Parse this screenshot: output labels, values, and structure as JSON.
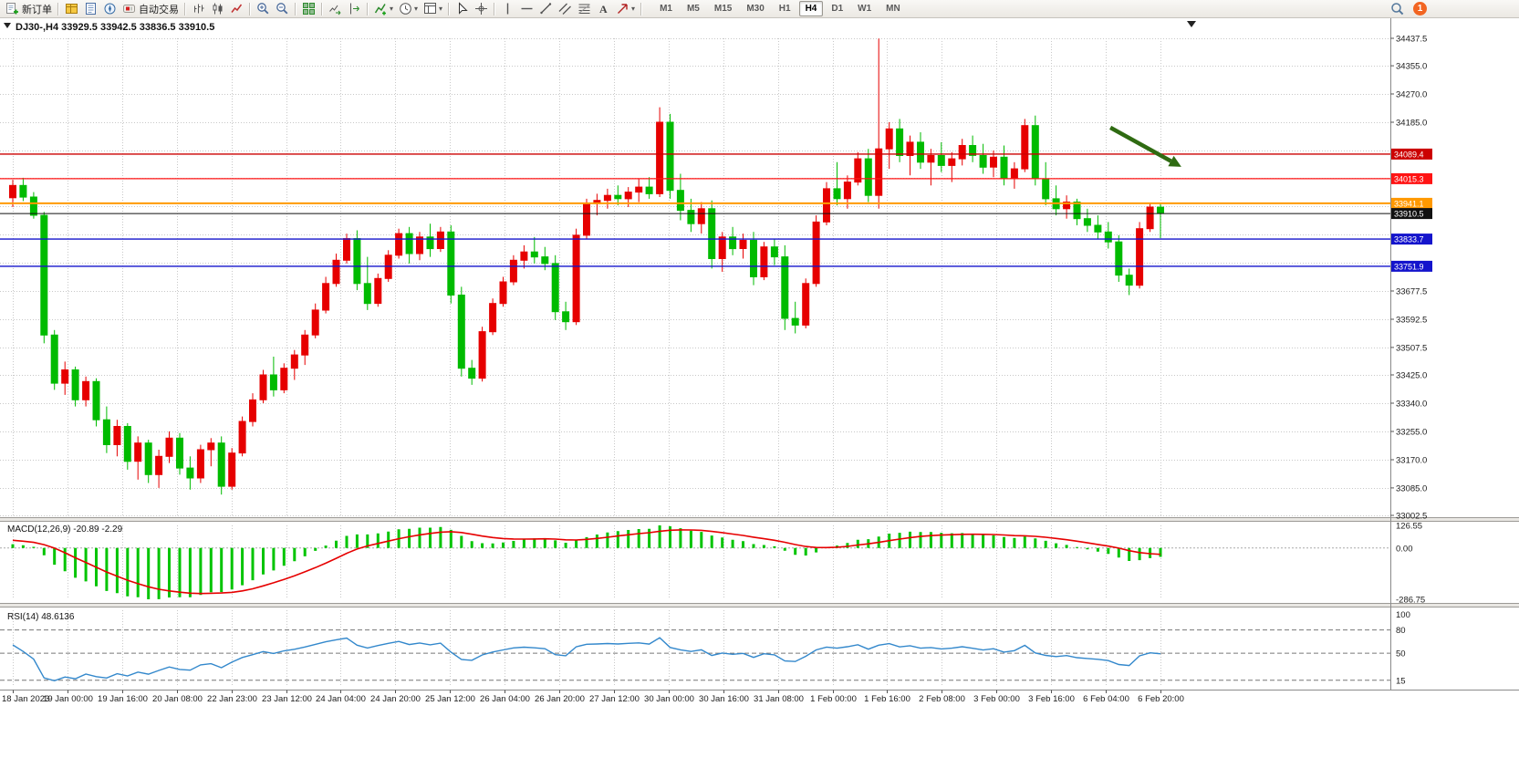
{
  "toolbar": {
    "items": [
      {
        "type": "button",
        "name": "new-order-button",
        "icon": "new-order",
        "label": "新订单"
      },
      {
        "type": "sep"
      },
      {
        "type": "iconbtn",
        "name": "market-watch-button",
        "icon": "market-watch"
      },
      {
        "type": "iconbtn",
        "name": "data-window-button",
        "icon": "data-window"
      },
      {
        "type": "iconbtn",
        "name": "navigator-button",
        "icon": "navigator"
      },
      {
        "type": "button",
        "name": "autotrading-button",
        "icon": "autotrading",
        "label": "自动交易"
      },
      {
        "type": "sep"
      },
      {
        "type": "iconbtn",
        "name": "bar-chart-button",
        "icon": "bar-chart"
      },
      {
        "type": "iconbtn",
        "name": "candlestick-chart-button",
        "icon": "candlestick-chart"
      },
      {
        "type": "iconbtn",
        "name": "line-chart-button",
        "icon": "line-chart"
      },
      {
        "type": "sep"
      },
      {
        "type": "iconbtn",
        "name": "zoom-in-button",
        "icon": "zoom-in"
      },
      {
        "type": "iconbtn",
        "name": "zoom-out-button",
        "icon": "zoom-out"
      },
      {
        "type": "sep"
      },
      {
        "type": "iconbtn",
        "name": "tile-windows-button",
        "icon": "tile-windows"
      },
      {
        "type": "sep"
      },
      {
        "type": "iconbtn",
        "name": "auto-scroll-button",
        "icon": "auto-scroll"
      },
      {
        "type": "iconbtn",
        "name": "chart-shift-button",
        "icon": "chart-shift"
      },
      {
        "type": "sep"
      },
      {
        "type": "iconbtn",
        "name": "indicators-button",
        "icon": "indicators",
        "dropdown": true
      },
      {
        "type": "iconbtn",
        "name": "periods-button",
        "icon": "clock",
        "dropdown": true
      },
      {
        "type": "iconbtn",
        "name": "templates-button",
        "icon": "template",
        "dropdown": true
      },
      {
        "type": "sep"
      },
      {
        "type": "iconbtn",
        "name": "cursor-button",
        "icon": "cursor"
      },
      {
        "type": "iconbtn",
        "name": "crosshair-button",
        "icon": "crosshair"
      },
      {
        "type": "sep"
      },
      {
        "type": "iconbtn",
        "name": "vertical-line-button",
        "icon": "vline"
      },
      {
        "type": "iconbtn",
        "name": "horizontal-line-button",
        "icon": "hline"
      },
      {
        "type": "iconbtn",
        "name": "trendline-button",
        "icon": "trendline"
      },
      {
        "type": "iconbtn",
        "name": "channel-button",
        "icon": "channel"
      },
      {
        "type": "iconbtn",
        "name": "fibonacci-button",
        "icon": "fibonacci"
      },
      {
        "type": "iconbtn",
        "name": "text-tool-button",
        "icon": "text"
      },
      {
        "type": "iconbtn",
        "name": "arrows-tool-button",
        "icon": "arrows",
        "dropdown": true
      },
      {
        "type": "sep"
      }
    ],
    "timeframes": [
      "M1",
      "M5",
      "M15",
      "M30",
      "H1",
      "H4",
      "D1",
      "W1",
      "MN"
    ],
    "active_timeframe": "H4",
    "notification_count": "1"
  },
  "chart_data": {
    "type": "candlestick",
    "symbol": "DJ30-",
    "period": "H4",
    "title": "DJ30-,H4 33929.5 33942.5 33836.5 33910.5",
    "ohlc": {
      "open": 33929.5,
      "high": 33942.5,
      "low": 33836.5,
      "close": 33910.5
    },
    "bull_color": "#e60000",
    "bear_color": "#00bb00",
    "y_axis": {
      "max": 34437.5,
      "min": 33002.5,
      "ticks": [
        34437.5,
        34355.0,
        34270.0,
        34185.0,
        33677.5,
        33592.5,
        33507.5,
        33425.0,
        33340.0,
        33255.0,
        33170.0,
        33085.0,
        33002.5
      ],
      "grid_only": [
        34100.0,
        34017.5,
        33932.5,
        33847.5,
        33762.5
      ]
    },
    "levels": [
      {
        "name": "resistance-line-1",
        "price": 34089.4,
        "color": "#cc0000",
        "width": 1.4
      },
      {
        "name": "resistance-line-2",
        "price": 34015.3,
        "color": "#ff1414",
        "width": 1.2
      },
      {
        "name": "pivot-line",
        "price": 33941.1,
        "color": "#ff9900",
        "width": 2
      },
      {
        "name": "support-line-1",
        "price": 33833.7,
        "color": "#1414cc",
        "width": 1.4
      },
      {
        "name": "support-line-2",
        "price": 33751.9,
        "color": "#1414cc",
        "width": 1.4
      }
    ],
    "current_price": {
      "price": 33910.5,
      "color": "#111111"
    },
    "x_labels": [
      "18 Jan 2023",
      "19 Jan 00:00",
      "19 Jan 16:00",
      "20 Jan 08:00",
      "22 Jan 23:00",
      "23 Jan 12:00",
      "24 Jan 04:00",
      "24 Jan 20:00",
      "25 Jan 12:00",
      "26 Jan 04:00",
      "26 Jan 20:00",
      "27 Jan 12:00",
      "30 Jan 00:00",
      "30 Jan 16:00",
      "31 Jan 08:00",
      "1 Feb 00:00",
      "1 Feb 16:00",
      "2 Feb 08:00",
      "3 Feb 00:00",
      "3 Feb 16:00",
      "6 Feb 04:00",
      "6 Feb 20:00"
    ],
    "warmup_closes": [
      33760,
      33780,
      33800,
      33825,
      33850,
      33875,
      33900,
      33925,
      33950,
      33975,
      34000,
      34020,
      34040,
      34060,
      34075,
      34090,
      34100,
      34105,
      34100,
      34090,
      34075,
      34060,
      34045,
      34030,
      34015,
      34000,
      33990,
      33980,
      33970,
      33960
    ],
    "candles": [
      [
        33958,
        34012,
        33930,
        33995
      ],
      [
        33995,
        34018,
        33948,
        33960
      ],
      [
        33960,
        33975,
        33895,
        33905
      ],
      [
        33905,
        33915,
        33520,
        33545
      ],
      [
        33545,
        33560,
        33380,
        33400
      ],
      [
        33400,
        33465,
        33365,
        33440
      ],
      [
        33440,
        33450,
        33330,
        33350
      ],
      [
        33350,
        33420,
        33330,
        33405
      ],
      [
        33405,
        33415,
        33270,
        33290
      ],
      [
        33290,
        33330,
        33190,
        33215
      ],
      [
        33215,
        33290,
        33180,
        33270
      ],
      [
        33270,
        33280,
        33140,
        33165
      ],
      [
        33165,
        33240,
        33110,
        33220
      ],
      [
        33220,
        33230,
        33100,
        33125
      ],
      [
        33125,
        33200,
        33085,
        33180
      ],
      [
        33180,
        33255,
        33160,
        33235
      ],
      [
        33235,
        33250,
        33125,
        33145
      ],
      [
        33145,
        33180,
        33080,
        33115
      ],
      [
        33115,
        33215,
        33100,
        33200
      ],
      [
        33200,
        33235,
        33150,
        33220
      ],
      [
        33220,
        33240,
        33065,
        33090
      ],
      [
        33090,
        33205,
        33080,
        33190
      ],
      [
        33190,
        33300,
        33180,
        33285
      ],
      [
        33285,
        33370,
        33270,
        33350
      ],
      [
        33350,
        33440,
        33340,
        33425
      ],
      [
        33425,
        33480,
        33360,
        33380
      ],
      [
        33380,
        33460,
        33370,
        33445
      ],
      [
        33445,
        33500,
        33410,
        33485
      ],
      [
        33485,
        33560,
        33455,
        33545
      ],
      [
        33545,
        33640,
        33535,
        33620
      ],
      [
        33620,
        33720,
        33610,
        33700
      ],
      [
        33700,
        33790,
        33690,
        33770
      ],
      [
        33770,
        33850,
        33760,
        33835
      ],
      [
        33835,
        33860,
        33680,
        33700
      ],
      [
        33700,
        33780,
        33620,
        33640
      ],
      [
        33640,
        33730,
        33630,
        33715
      ],
      [
        33715,
        33800,
        33705,
        33785
      ],
      [
        33785,
        33865,
        33775,
        33850
      ],
      [
        33850,
        33870,
        33760,
        33790
      ],
      [
        33790,
        33855,
        33770,
        33840
      ],
      [
        33840,
        33880,
        33780,
        33805
      ],
      [
        33805,
        33870,
        33795,
        33855
      ],
      [
        33855,
        33875,
        33640,
        33665
      ],
      [
        33665,
        33690,
        33420,
        33445
      ],
      [
        33445,
        33470,
        33395,
        33415
      ],
      [
        33415,
        33570,
        33405,
        33555
      ],
      [
        33555,
        33655,
        33545,
        33640
      ],
      [
        33640,
        33720,
        33630,
        33705
      ],
      [
        33705,
        33785,
        33695,
        33770
      ],
      [
        33770,
        33815,
        33745,
        33795
      ],
      [
        33795,
        33840,
        33760,
        33780
      ],
      [
        33780,
        33810,
        33740,
        33760
      ],
      [
        33760,
        33785,
        33590,
        33615
      ],
      [
        33615,
        33645,
        33560,
        33585
      ],
      [
        33585,
        33865,
        33575,
        33845
      ],
      [
        33845,
        33955,
        33835,
        33940
      ],
      [
        33940,
        33970,
        33905,
        33950
      ],
      [
        33950,
        33985,
        33925,
        33965
      ],
      [
        33965,
        33995,
        33935,
        33955
      ],
      [
        33955,
        33990,
        33930,
        33975
      ],
      [
        33975,
        34015,
        33945,
        33990
      ],
      [
        33990,
        34020,
        33955,
        33970
      ],
      [
        33970,
        34230,
        33960,
        34185
      ],
      [
        34185,
        34210,
        33955,
        33980
      ],
      [
        33980,
        34030,
        33890,
        33920
      ],
      [
        33920,
        33955,
        33855,
        33880
      ],
      [
        33880,
        33945,
        33850,
        33925
      ],
      [
        33925,
        33950,
        33745,
        33775
      ],
      [
        33775,
        33855,
        33735,
        33840
      ],
      [
        33840,
        33870,
        33785,
        33805
      ],
      [
        33805,
        33850,
        33775,
        33830
      ],
      [
        33830,
        33855,
        33695,
        33720
      ],
      [
        33720,
        33825,
        33710,
        33810
      ],
      [
        33810,
        33835,
        33755,
        33780
      ],
      [
        33780,
        33815,
        33560,
        33595
      ],
      [
        33595,
        33645,
        33550,
        33575
      ],
      [
        33575,
        33715,
        33565,
        33700
      ],
      [
        33700,
        33905,
        33690,
        33885
      ],
      [
        33885,
        34005,
        33875,
        33985
      ],
      [
        33985,
        34065,
        33935,
        33955
      ],
      [
        33955,
        34025,
        33925,
        34005
      ],
      [
        34005,
        34095,
        33995,
        34075
      ],
      [
        34075,
        34105,
        33945,
        33965
      ],
      [
        33965,
        34437,
        33925,
        34105
      ],
      [
        34105,
        34185,
        34045,
        34165
      ],
      [
        34165,
        34195,
        34065,
        34085
      ],
      [
        34085,
        34145,
        34025,
        34125
      ],
      [
        34125,
        34155,
        34045,
        34065
      ],
      [
        34065,
        34105,
        33995,
        34085
      ],
      [
        34085,
        34125,
        34035,
        34055
      ],
      [
        34055,
        34095,
        34005,
        34075
      ],
      [
        34075,
        34135,
        34055,
        34115
      ],
      [
        34115,
        34145,
        34065,
        34085
      ],
      [
        34085,
        34120,
        34030,
        34050
      ],
      [
        34050,
        34100,
        34020,
        34080
      ],
      [
        34080,
        34115,
        33995,
        34015
      ],
      [
        34015,
        34065,
        33985,
        34045
      ],
      [
        34045,
        34195,
        34035,
        34175
      ],
      [
        34175,
        34205,
        33995,
        34015
      ],
      [
        34015,
        34065,
        33935,
        33955
      ],
      [
        33955,
        33995,
        33905,
        33925
      ],
      [
        33925,
        33965,
        33895,
        33945
      ],
      [
        33945,
        33955,
        33875,
        33895
      ],
      [
        33895,
        33925,
        33855,
        33875
      ],
      [
        33875,
        33905,
        33835,
        33855
      ],
      [
        33855,
        33885,
        33805,
        33825
      ],
      [
        33825,
        33845,
        33705,
        33725
      ],
      [
        33725,
        33745,
        33665,
        33695
      ],
      [
        33695,
        33885,
        33685,
        33865
      ],
      [
        33865,
        33940,
        33855,
        33930
      ],
      [
        33929.5,
        33942.5,
        33836.5,
        33910.5
      ]
    ],
    "macd": {
      "label": "MACD(12,26,9) -20.89 -2.29",
      "fast": 12,
      "slow": 26,
      "signal": 9,
      "scale": [
        126.55,
        0.0,
        -286.75
      ],
      "scale_labels": [
        "126.55",
        "0.00",
        "-286.75"
      ],
      "hist_color": "#00c400",
      "signal_color": "#e60000"
    },
    "rsi": {
      "label": "RSI(14) 48.6136",
      "period": 14,
      "line_color": "#3388cc",
      "levels": [
        80,
        50,
        15
      ],
      "scale_labels": [
        {
          "value": 100,
          "text": "100"
        },
        {
          "value": 80,
          "text": "80"
        },
        {
          "value": 50,
          "text": "50"
        },
        {
          "value": 15,
          "text": "15"
        }
      ]
    },
    "arrow": {
      "start_index": 105.2,
      "start_price": 34169,
      "end_index": 112,
      "end_price": 34051,
      "color": "#2f6b12"
    }
  }
}
